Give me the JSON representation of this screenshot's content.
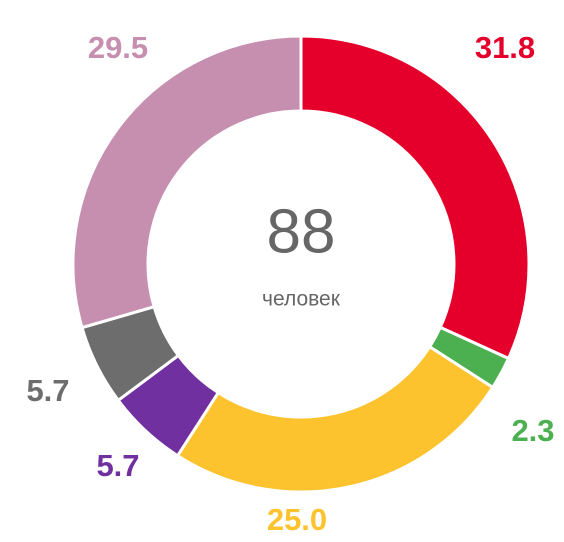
{
  "chart_data": {
    "type": "donut",
    "center_value": "88",
    "center_label": "человек",
    "categories": [
      null,
      null,
      null,
      null,
      null,
      null
    ],
    "values": [
      31.8,
      2.3,
      25.0,
      5.7,
      5.7,
      29.5
    ],
    "value_labels": [
      "31.8",
      "2.3",
      "25.0",
      "5.7",
      "5.7",
      "29.5"
    ],
    "colors": [
      "#e4002b",
      "#4caf50",
      "#fdc32e",
      "#7030a0",
      "#6d6d6d",
      "#c68fb0"
    ]
  }
}
